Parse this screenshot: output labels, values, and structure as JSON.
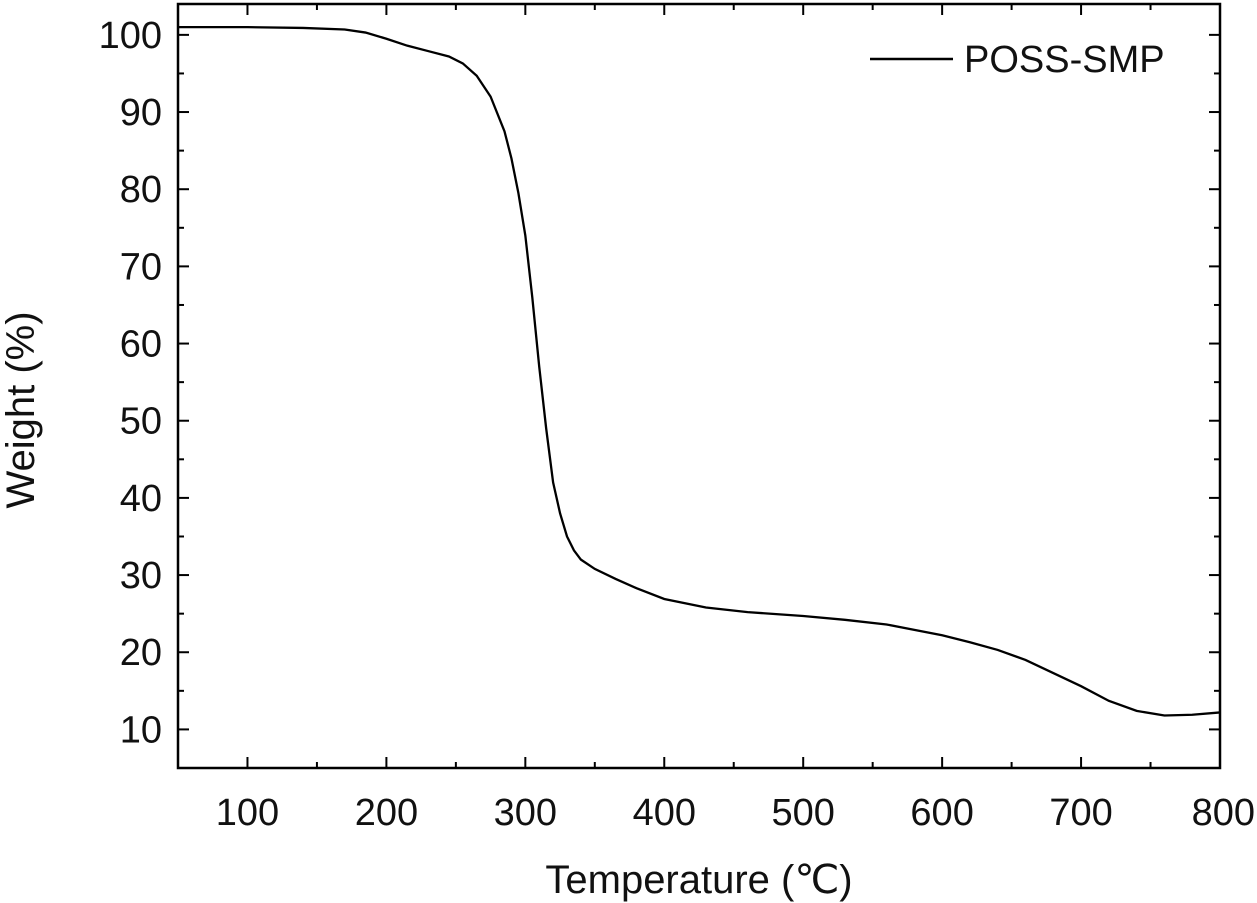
{
  "chart_data": {
    "type": "line",
    "title": "",
    "xlabel": "Temperature (℃)",
    "ylabel": "Weight (%)",
    "xlim": [
      50,
      800
    ],
    "ylim": [
      5,
      104
    ],
    "xticks": [
      100,
      200,
      300,
      400,
      500,
      600,
      700,
      800
    ],
    "yticks": [
      10,
      20,
      30,
      40,
      50,
      60,
      70,
      80,
      90,
      100
    ],
    "grid": false,
    "legend": {
      "position": "top-right"
    },
    "series": [
      {
        "name": "POSS-SMP",
        "color": "#000000",
        "x": [
          50,
          100,
          140,
          170,
          185,
          200,
          215,
          230,
          245,
          255,
          265,
          275,
          285,
          290,
          295,
          300,
          305,
          310,
          315,
          320,
          325,
          330,
          335,
          340,
          350,
          365,
          380,
          400,
          430,
          460,
          500,
          530,
          560,
          580,
          600,
          620,
          640,
          660,
          680,
          700,
          720,
          740,
          760,
          780,
          800
        ],
        "y": [
          101.0,
          101.0,
          100.9,
          100.7,
          100.3,
          99.5,
          98.6,
          97.9,
          97.2,
          96.3,
          94.7,
          92.0,
          87.5,
          84.0,
          79.5,
          74.0,
          66.0,
          57.0,
          49.0,
          42.0,
          38.0,
          35.0,
          33.2,
          32.0,
          30.8,
          29.5,
          28.3,
          26.9,
          25.8,
          25.2,
          24.7,
          24.2,
          23.6,
          22.9,
          22.2,
          21.3,
          20.3,
          19.0,
          17.3,
          15.6,
          13.7,
          12.4,
          11.8,
          11.9,
          12.2
        ]
      }
    ]
  }
}
